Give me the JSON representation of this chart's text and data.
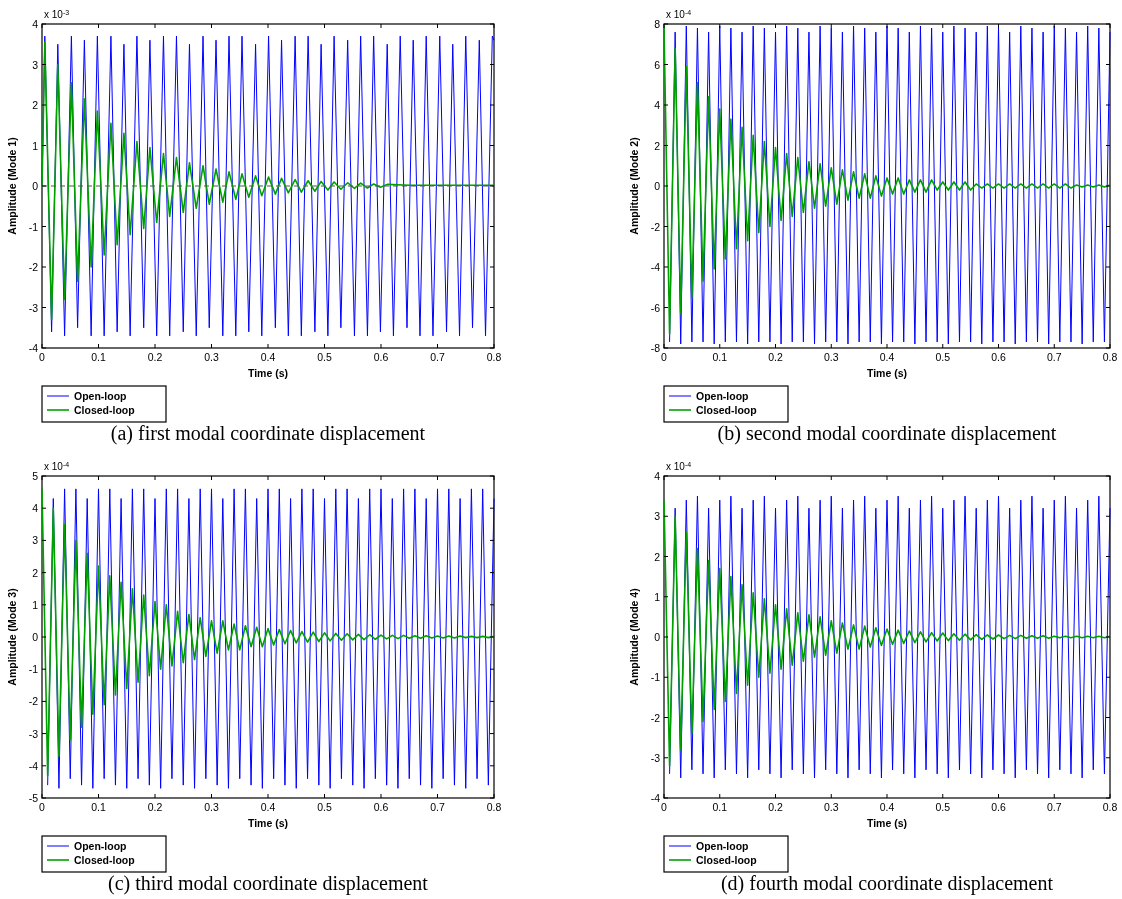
{
  "chart_data": [
    {
      "type": "line",
      "title": "(a) first modal coordinate displacement",
      "xlabel": "Time (s)",
      "ylabel": "Amplitude (Mode 1)",
      "annotations": [
        "x 10$^{-3}$"
      ],
      "xlim": [
        0,
        0.8
      ],
      "xticks": [
        0,
        0.1,
        0.2,
        0.3,
        0.4,
        0.5,
        0.6,
        0.7,
        0.8
      ],
      "ylim": [
        -4,
        4
      ],
      "yticks": [
        -4,
        -3,
        -2,
        -1,
        0,
        1,
        2,
        3,
        4
      ],
      "legend": "bottom left",
      "ref_lines": [
        {
          "axis": "y",
          "value": 0,
          "color": "#555555",
          "line_style": "dashed"
        }
      ],
      "series": [
        {
          "name": "Open-loop",
          "color": "#0000ff",
          "x": [
            0,
            0.005,
            0.017,
            0.028,
            0.04,
            0.052,
            0.063,
            0.075,
            0.087,
            0.098,
            0.11,
            0.122,
            0.133,
            0.145,
            0.156,
            0.168,
            0.18,
            0.191,
            0.203,
            0.215,
            0.226,
            0.238,
            0.25,
            0.261,
            0.273,
            0.285,
            0.296,
            0.308,
            0.32,
            0.331,
            0.343,
            0.354,
            0.366,
            0.378,
            0.389,
            0.401,
            0.413,
            0.424,
            0.436,
            0.448,
            0.459,
            0.471,
            0.483,
            0.494,
            0.506,
            0.517,
            0.529,
            0.541,
            0.553,
            0.564,
            0.576,
            0.587,
            0.599,
            0.611,
            0.622,
            0.634,
            0.646,
            0.657,
            0.669,
            0.68,
            0.692,
            0.704,
            0.716,
            0.727,
            0.739,
            0.75,
            0.762,
            0.774,
            0.785,
            0.797,
            0.8
          ],
          "values": [
            0,
            3.7,
            -3.6,
            3.5,
            -3.7,
            3.7,
            -3.5,
            3.6,
            -3.7,
            3.7,
            -3.7,
            3.7,
            -3.6,
            3.5,
            -3.7,
            3.7,
            -3.5,
            3.6,
            -3.7,
            3.7,
            -3.7,
            3.7,
            -3.6,
            3.5,
            -3.7,
            3.7,
            -3.5,
            3.6,
            -3.7,
            3.7,
            -3.7,
            3.7,
            -3.6,
            3.5,
            -3.7,
            3.7,
            -3.5,
            3.6,
            -3.7,
            3.7,
            -3.7,
            3.7,
            -3.6,
            3.5,
            -3.7,
            3.7,
            -3.5,
            3.6,
            -3.7,
            3.7,
            -3.7,
            3.7,
            -3.6,
            3.5,
            -3.7,
            3.7,
            -3.5,
            3.6,
            -3.7,
            3.7,
            -3.7,
            3.7,
            -3.6,
            3.5,
            -3.7,
            3.7,
            -3.5,
            3.6,
            -3.7,
            3.7,
            3.6
          ]
        },
        {
          "name": "Closed-loop",
          "color": "#00a000",
          "x": [
            0,
            0.005,
            0.017,
            0.028,
            0.04,
            0.052,
            0.063,
            0.075,
            0.087,
            0.098,
            0.11,
            0.122,
            0.133,
            0.145,
            0.156,
            0.168,
            0.18,
            0.191,
            0.203,
            0.215,
            0.226,
            0.238,
            0.25,
            0.261,
            0.273,
            0.285,
            0.296,
            0.308,
            0.32,
            0.331,
            0.343,
            0.354,
            0.366,
            0.378,
            0.389,
            0.401,
            0.413,
            0.424,
            0.436,
            0.448,
            0.459,
            0.471,
            0.483,
            0.494,
            0.506,
            0.517,
            0.529,
            0.541,
            0.553,
            0.564,
            0.576,
            0.587,
            0.599,
            0.611,
            0.65,
            0.7,
            0.75,
            0.8
          ],
          "values": [
            0,
            3.55,
            -3.3,
            3.0,
            -2.8,
            2.55,
            -2.35,
            2.15,
            -2.0,
            1.85,
            -1.7,
            1.55,
            -1.45,
            1.3,
            -1.2,
            1.1,
            -1.05,
            0.95,
            -0.9,
            0.8,
            -0.75,
            0.7,
            -0.65,
            0.57,
            -0.55,
            0.5,
            -0.45,
            0.42,
            -0.4,
            0.35,
            -0.33,
            0.3,
            -0.28,
            0.25,
            -0.24,
            0.22,
            -0.2,
            0.19,
            -0.17,
            0.16,
            -0.15,
            0.13,
            -0.13,
            0.11,
            -0.1,
            0.1,
            -0.08,
            0.08,
            -0.06,
            0.07,
            -0.05,
            0.05,
            -0.03,
            0.04,
            0.02,
            0.02,
            0.02,
            0.02
          ]
        }
      ]
    },
    {
      "type": "line",
      "title": "(b) second modal coordinate displacement",
      "xlabel": "Time (s)",
      "ylabel": "Amplitude (Mode 2)",
      "annotations": [
        "x 10$^{-4}$"
      ],
      "xlim": [
        0,
        0.8
      ],
      "xticks": [
        0,
        0.1,
        0.2,
        0.3,
        0.4,
        0.5,
        0.6,
        0.7,
        0.8
      ],
      "ylim": [
        -8,
        8
      ],
      "yticks": [
        -8,
        -6,
        -4,
        -2,
        0,
        2,
        4,
        6,
        8
      ],
      "legend": "bottom left",
      "x": [
        0,
        0.01,
        0.02,
        0.03,
        0.04,
        0.05,
        0.06,
        0.07,
        0.08,
        0.09,
        0.1,
        0.11,
        0.12,
        0.13,
        0.14,
        0.15,
        0.16,
        0.17,
        0.18,
        0.19,
        0.2,
        0.21,
        0.22,
        0.23,
        0.24,
        0.25,
        0.26,
        0.27,
        0.28,
        0.29,
        0.3,
        0.31,
        0.32,
        0.33,
        0.34,
        0.35,
        0.36,
        0.37,
        0.38,
        0.39,
        0.4,
        0.41,
        0.42,
        0.43,
        0.44,
        0.45,
        0.46,
        0.47,
        0.48,
        0.49,
        0.5,
        0.51,
        0.52,
        0.53,
        0.54,
        0.55,
        0.56,
        0.57,
        0.58,
        0.59,
        0.6,
        0.61,
        0.62,
        0.63,
        0.64,
        0.65,
        0.66,
        0.67,
        0.68,
        0.69,
        0.7,
        0.71,
        0.72,
        0.73,
        0.74,
        0.75,
        0.76,
        0.77,
        0.78,
        0.79,
        0.8
      ],
      "series": [
        {
          "name": "Open-loop",
          "color": "#0000ff",
          "values": [
            null,
            -7.7,
            7.6,
            -7.8,
            7.9,
            -7.7,
            7.8,
            -7.7,
            7.6,
            -7.8,
            7.9,
            -7.7,
            7.8,
            -7.7,
            7.6,
            -7.8,
            7.9,
            -7.7,
            7.8,
            -7.7,
            7.6,
            -7.8,
            7.9,
            -7.7,
            7.8,
            -7.7,
            7.6,
            -7.8,
            7.9,
            -7.7,
            7.8,
            -7.7,
            7.6,
            -7.8,
            7.9,
            -7.7,
            7.8,
            -7.7,
            7.6,
            -7.8,
            7.9,
            -7.7,
            7.8,
            -7.7,
            7.6,
            -7.8,
            7.9,
            -7.7,
            7.8,
            -7.7,
            7.6,
            -7.8,
            7.9,
            -7.7,
            7.8,
            -7.7,
            7.6,
            -7.8,
            7.9,
            -7.7,
            7.8,
            -7.7,
            7.6,
            -7.8,
            7.9,
            -7.7,
            7.8,
            -7.7,
            7.6,
            -7.8,
            7.9,
            -7.7,
            7.8,
            -7.7,
            7.6,
            -7.8,
            7.9,
            -7.7,
            7.8,
            -7.7,
            7.6
          ]
        },
        {
          "name": "Closed-loop",
          "color": "#00a000",
          "values": [
            7.8,
            -7.3,
            6.8,
            -6.3,
            5.9,
            -5.5,
            5.1,
            -4.7,
            4.4,
            -4.1,
            3.8,
            -3.6,
            3.3,
            -3.1,
            2.9,
            -2.7,
            2.5,
            -2.3,
            2.2,
            -2.0,
            1.9,
            -1.7,
            1.6,
            -1.5,
            1.4,
            -1.3,
            1.2,
            -1.1,
            1.1,
            -1.0,
            0.9,
            -0.9,
            0.8,
            -0.7,
            0.7,
            -0.6,
            0.6,
            -0.6,
            0.5,
            -0.5,
            0.4,
            -0.4,
            0.4,
            -0.4,
            0.3,
            -0.3,
            0.3,
            -0.3,
            0.3,
            -0.2,
            0.2,
            -0.2,
            0.2,
            -0.2,
            0.2,
            -0.2,
            0.1,
            -0.1,
            0.1,
            -0.1,
            0.1,
            -0.1,
            0.1,
            -0.1,
            0.1,
            -0.1,
            0.1,
            -0.1,
            0.1,
            -0.1,
            0.1,
            -0.1,
            0.1,
            -0.1,
            0.05,
            -0.05,
            0.05,
            -0.05,
            0.05,
            -0.05,
            0.05
          ]
        }
      ]
    },
    {
      "type": "line",
      "title": "(c) third modal coordinate displacement",
      "xlabel": "Time (s)",
      "ylabel": "Amplitude (Mode 3)",
      "annotations": [
        "x 10$^{-4}$"
      ],
      "xlim": [
        0,
        0.8
      ],
      "xticks": [
        0,
        0.1,
        0.2,
        0.3,
        0.4,
        0.5,
        0.6,
        0.7,
        0.8
      ],
      "ylim": [
        -5,
        5
      ],
      "yticks": [
        -5,
        -4,
        -3,
        -2,
        -1,
        0,
        1,
        2,
        3,
        4,
        5
      ],
      "legend": "bottom left",
      "x": [
        0,
        0.01,
        0.02,
        0.03,
        0.04,
        0.05,
        0.06,
        0.07,
        0.08,
        0.09,
        0.1,
        0.11,
        0.12,
        0.13,
        0.14,
        0.15,
        0.16,
        0.17,
        0.18,
        0.19,
        0.2,
        0.21,
        0.22,
        0.23,
        0.24,
        0.25,
        0.26,
        0.27,
        0.28,
        0.29,
        0.3,
        0.31,
        0.32,
        0.33,
        0.34,
        0.35,
        0.36,
        0.37,
        0.38,
        0.39,
        0.4,
        0.41,
        0.42,
        0.43,
        0.44,
        0.45,
        0.46,
        0.47,
        0.48,
        0.49,
        0.5,
        0.51,
        0.52,
        0.53,
        0.54,
        0.55,
        0.56,
        0.57,
        0.58,
        0.59,
        0.6,
        0.61,
        0.62,
        0.63,
        0.64,
        0.65,
        0.66,
        0.67,
        0.68,
        0.69,
        0.7,
        0.71,
        0.72,
        0.73,
        0.74,
        0.75,
        0.76,
        0.77,
        0.78,
        0.79,
        0.8
      ],
      "series": [
        {
          "name": "Open-loop",
          "color": "#0000ff",
          "values": [
            null,
            -4.6,
            4.3,
            -4.7,
            4.6,
            -4.4,
            4.6,
            -4.6,
            4.3,
            -4.7,
            4.6,
            -4.4,
            4.6,
            -4.6,
            4.3,
            -4.7,
            4.6,
            -4.4,
            4.6,
            -4.6,
            4.3,
            -4.7,
            4.6,
            -4.4,
            4.6,
            -4.6,
            4.3,
            -4.7,
            4.6,
            -4.4,
            4.6,
            -4.6,
            4.3,
            -4.7,
            4.6,
            -4.4,
            4.6,
            -4.6,
            4.3,
            -4.7,
            4.6,
            -4.4,
            4.6,
            -4.6,
            4.3,
            -4.7,
            4.6,
            -4.4,
            4.6,
            -4.6,
            4.3,
            -4.7,
            4.6,
            -4.4,
            4.6,
            -4.6,
            4.3,
            -4.7,
            4.6,
            -4.4,
            4.6,
            -4.6,
            4.3,
            -4.7,
            4.6,
            -4.4,
            4.6,
            -4.6,
            4.3,
            -4.7,
            4.6,
            -4.4,
            4.6,
            -4.6,
            4.3,
            -4.7,
            4.6,
            -4.4,
            4.6,
            -4.6,
            4.3
          ]
        },
        {
          "name": "Closed-loop",
          "color": "#00a000",
          "values": [
            4.6,
            -4.3,
            4.0,
            -3.7,
            3.5,
            -3.2,
            3.0,
            -2.8,
            2.6,
            -2.4,
            2.2,
            -2.1,
            1.9,
            -1.8,
            1.7,
            -1.6,
            1.5,
            -1.4,
            1.3,
            -1.2,
            1.1,
            -1.0,
            1.0,
            -0.9,
            0.8,
            -0.8,
            0.7,
            -0.7,
            0.6,
            -0.6,
            0.5,
            -0.5,
            0.5,
            -0.4,
            0.4,
            -0.4,
            0.35,
            -0.3,
            0.3,
            -0.3,
            0.26,
            -0.25,
            0.23,
            -0.21,
            0.2,
            -0.18,
            0.17,
            -0.16,
            0.15,
            -0.14,
            0.13,
            -0.12,
            0.11,
            -0.1,
            0.1,
            -0.09,
            0.08,
            -0.08,
            0.07,
            -0.07,
            0.06,
            -0.06,
            0.05,
            -0.05,
            0.05,
            -0.04,
            0.04,
            -0.04,
            0.04,
            -0.03,
            0.03,
            -0.03,
            0.03,
            -0.03,
            0.03,
            -0.02,
            0.02,
            -0.02,
            0.02,
            -0.02,
            0.02
          ]
        }
      ]
    },
    {
      "type": "line",
      "title": "(d) fourth modal coordinate displacement",
      "xlabel": "Time (s)",
      "ylabel": "Amplitude (Mode 4)",
      "annotations": [
        "x 10$^{-4}$"
      ],
      "xlim": [
        0,
        0.8
      ],
      "xticks": [
        0,
        0.1,
        0.2,
        0.3,
        0.4,
        0.5,
        0.6,
        0.7,
        0.8
      ],
      "ylim": [
        -4,
        4
      ],
      "yticks": [
        -4,
        -3,
        -2,
        -1,
        0,
        1,
        2,
        3,
        4
      ],
      "legend": "bottom left",
      "x": [
        0,
        0.01,
        0.02,
        0.03,
        0.04,
        0.05,
        0.06,
        0.07,
        0.08,
        0.09,
        0.1,
        0.11,
        0.12,
        0.13,
        0.14,
        0.15,
        0.16,
        0.17,
        0.18,
        0.19,
        0.2,
        0.21,
        0.22,
        0.23,
        0.24,
        0.25,
        0.26,
        0.27,
        0.28,
        0.29,
        0.3,
        0.31,
        0.32,
        0.33,
        0.34,
        0.35,
        0.36,
        0.37,
        0.38,
        0.39,
        0.4,
        0.41,
        0.42,
        0.43,
        0.44,
        0.45,
        0.46,
        0.47,
        0.48,
        0.49,
        0.5,
        0.51,
        0.52,
        0.53,
        0.54,
        0.55,
        0.56,
        0.57,
        0.58,
        0.59,
        0.6,
        0.61,
        0.62,
        0.63,
        0.64,
        0.65,
        0.66,
        0.67,
        0.68,
        0.69,
        0.7,
        0.71,
        0.72,
        0.73,
        0.74,
        0.75,
        0.76,
        0.77,
        0.78,
        0.79,
        0.8
      ],
      "series": [
        {
          "name": "Open-loop",
          "color": "#0000ff",
          "values": [
            null,
            -3.4,
            3.2,
            -3.5,
            3.4,
            -3.3,
            3.5,
            -3.4,
            3.2,
            -3.5,
            3.4,
            -3.3,
            3.5,
            -3.4,
            3.2,
            -3.5,
            3.4,
            -3.3,
            3.5,
            -3.4,
            3.2,
            -3.5,
            3.4,
            -3.3,
            3.5,
            -3.4,
            3.2,
            -3.5,
            3.4,
            -3.3,
            3.5,
            -3.4,
            3.2,
            -3.5,
            3.4,
            -3.3,
            3.5,
            -3.4,
            3.2,
            -3.5,
            3.4,
            -3.3,
            3.5,
            -3.4,
            3.2,
            -3.5,
            3.4,
            -3.3,
            3.5,
            -3.4,
            3.2,
            -3.5,
            3.4,
            -3.3,
            3.5,
            -3.4,
            3.2,
            -3.5,
            3.4,
            -3.3,
            3.5,
            -3.4,
            3.2,
            -3.5,
            3.4,
            -3.3,
            3.5,
            -3.4,
            3.2,
            -3.5,
            3.4,
            -3.3,
            3.5,
            -3.4,
            3.2,
            -3.5,
            3.4,
            -3.3,
            3.5,
            -3.4,
            3.2
          ]
        },
        {
          "name": "Closed-loop",
          "color": "#00a000",
          "values": [
            3.4,
            -3.2,
            3.0,
            -2.8,
            2.6,
            -2.4,
            2.2,
            -2.1,
            1.9,
            -1.8,
            1.7,
            -1.6,
            1.5,
            -1.4,
            1.3,
            -1.2,
            1.1,
            -1.0,
            0.95,
            -0.9,
            0.8,
            -0.8,
            0.7,
            -0.7,
            0.6,
            -0.6,
            0.55,
            -0.5,
            0.5,
            -0.45,
            0.4,
            -0.4,
            0.35,
            -0.3,
            0.3,
            -0.3,
            0.27,
            -0.25,
            0.23,
            -0.21,
            0.2,
            -0.18,
            0.17,
            -0.16,
            0.15,
            -0.14,
            0.13,
            -0.12,
            0.11,
            -0.1,
            0.1,
            -0.09,
            0.08,
            -0.08,
            0.07,
            -0.07,
            0.06,
            -0.06,
            0.05,
            -0.05,
            0.05,
            -0.04,
            0.04,
            -0.04,
            0.04,
            -0.03,
            0.03,
            -0.03,
            0.03,
            -0.03,
            0.02,
            -0.02,
            0.02,
            -0.02,
            0.02,
            -0.02,
            0.02,
            -0.02,
            0.02,
            -0.02,
            0.02
          ]
        }
      ]
    }
  ]
}
